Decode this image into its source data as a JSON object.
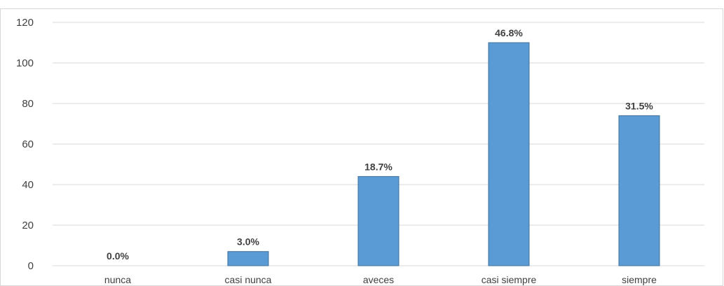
{
  "chart_data": {
    "type": "bar",
    "categories": [
      "nunca",
      "casi nunca",
      "aveces",
      "casi siempre",
      "siempre"
    ],
    "series": [
      {
        "values": [
          0,
          7,
          44,
          110,
          74
        ],
        "color": "#5B9BD5"
      }
    ],
    "data_labels": [
      "0.0%",
      "3.0%",
      "18.7%",
      "46.8%",
      "31.5%"
    ],
    "ylim": [
      0,
      120
    ],
    "yticks": [
      0,
      20,
      40,
      60,
      80,
      100,
      120
    ],
    "grid": true,
    "legend": "none",
    "colors": {
      "bar": "#5B9BD5",
      "bar_edge": "#41719C",
      "grid": "#D9D9D9",
      "frame": "#D9D9D9"
    }
  }
}
